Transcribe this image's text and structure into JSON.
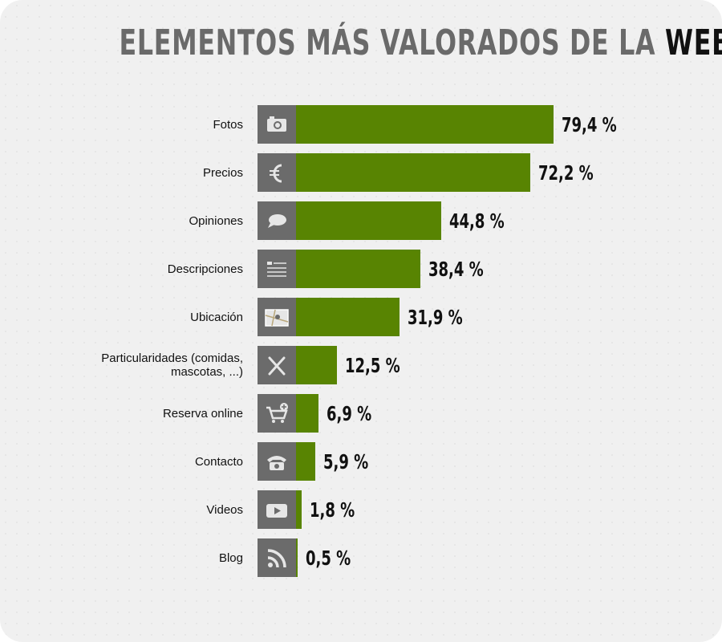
{
  "chart_data": {
    "type": "bar",
    "orientation": "horizontal",
    "title": "ELEMENTOS MÁS VALORADOS DE LA",
    "title_emphasis": "WEB",
    "categories": [
      "Fotos",
      "Precios",
      "Opiniones",
      "Descripciones",
      "Ubicación",
      "Particularidades (comidas, mascotas, ...)",
      "Reserva online",
      "Contacto",
      "Videos",
      "Blog"
    ],
    "values": [
      79.4,
      72.2,
      44.8,
      38.4,
      31.9,
      12.5,
      6.9,
      5.9,
      1.8,
      0.5
    ],
    "value_labels": [
      "79,4 %",
      "72,2 %",
      "44,8 %",
      "38,4 %",
      "31,9 %",
      "12,5 %",
      "6,9 %",
      "5,9 %",
      "1,8 %",
      "0,5 %"
    ],
    "color": "#588402",
    "icon_color": "#6b6b6b"
  }
}
